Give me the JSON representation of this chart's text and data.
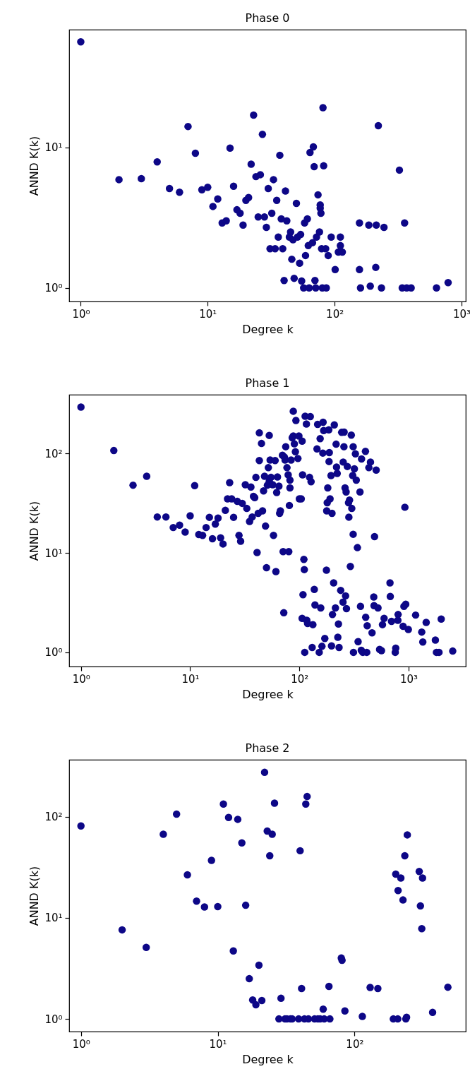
{
  "chart_data": [
    {
      "type": "scatter",
      "title": "Phase 0",
      "xlabel": "Degree k",
      "ylabel": "ANND K(k)",
      "log": "xy",
      "marker": "circle",
      "xlim": [
        0.81,
        1080
      ],
      "ylim": [
        0.8,
        69
      ],
      "xticks": [
        {
          "value": 1,
          "label": "10⁰"
        },
        {
          "value": 10,
          "label": "10¹"
        },
        {
          "value": 100,
          "label": "10²"
        },
        {
          "value": 1000,
          "label": "10³"
        }
      ],
      "yticks": [
        {
          "value": 1,
          "label": "10⁰"
        },
        {
          "value": 10,
          "label": "10¹"
        }
      ],
      "series": [
        {
          "color": "#0d0787",
          "x": [
            1,
            2,
            3,
            4,
            5,
            6,
            7,
            8,
            9,
            10,
            11,
            12,
            13,
            14,
            15,
            16,
            17,
            18,
            19,
            20,
            21,
            22,
            23,
            24,
            25,
            26,
            27,
            28,
            29,
            30,
            31,
            32,
            33,
            34,
            35,
            36,
            37,
            38,
            39,
            40,
            41,
            42,
            44,
            45,
            46,
            47,
            48,
            50,
            51,
            53,
            54,
            55,
            57,
            58,
            59,
            61,
            62,
            63,
            64,
            67,
            68,
            69,
            70,
            71,
            72,
            74,
            76,
            77,
            77,
            78,
            79,
            80,
            81,
            82,
            85,
            86,
            89,
            94,
            101,
            107,
            111,
            111,
            115,
            157,
            157,
            160,
            186,
            191,
            211,
            213,
            221,
            234,
            245,
            324,
            341,
            356,
            370,
            401,
            635,
            784
          ],
          "values": [
            56.5,
            5.9,
            6.0,
            7.9,
            5.1,
            4.8,
            14.1,
            9.1,
            5.0,
            5.2,
            3.8,
            4.3,
            2.9,
            3.0,
            9.9,
            5.3,
            3.6,
            3.4,
            2.8,
            4.2,
            4.4,
            7.6,
            17.0,
            6.2,
            3.2,
            6.4,
            12.4,
            3.2,
            2.7,
            5.1,
            1.9,
            3.4,
            5.9,
            1.9,
            4.2,
            2.3,
            8.8,
            3.1,
            1.9,
            1.13,
            4.9,
            3.0,
            2.3,
            2.5,
            1.6,
            2.2,
            1.17,
            4.0,
            2.3,
            1.5,
            2.4,
            1.12,
            1.0,
            2.9,
            1.7,
            3.1,
            2.0,
            1.0,
            9.2,
            2.1,
            10.1,
            7.3,
            1.13,
            1.0,
            2.3,
            4.6,
            2.5,
            3.7,
            3.9,
            3.4,
            1.9,
            1.0,
            19.2,
            7.4,
            1.9,
            1.0,
            1.7,
            2.3,
            1.35,
            1.8,
            2.3,
            2.0,
            1.8,
            1.35,
            2.9,
            1.0,
            2.8,
            1.03,
            1.4,
            2.8,
            14.3,
            1.0,
            2.7,
            6.9,
            1.0,
            2.9,
            1.0,
            1.0,
            1.0,
            1.09
          ]
        }
      ]
    },
    {
      "type": "scatter",
      "title": "Phase 1",
      "xlabel": "Degree k",
      "ylabel": "ANND K(k)",
      "log": "xy",
      "marker": "circle",
      "xlim": [
        0.78,
        3340
      ],
      "ylim": [
        0.72,
        390
      ],
      "xticks": [
        {
          "value": 1,
          "label": "10⁰"
        },
        {
          "value": 10,
          "label": "10¹"
        },
        {
          "value": 100,
          "label": "10²"
        },
        {
          "value": 1000,
          "label": "10³"
        }
      ],
      "yticks": [
        {
          "value": 1,
          "label": "10⁰"
        },
        {
          "value": 10,
          "label": "10¹"
        },
        {
          "value": 100,
          "label": "10²"
        }
      ],
      "series": [
        {
          "color": "#0d0787",
          "x": [
            1,
            2,
            3,
            4,
            5,
            6,
            7,
            8,
            9,
            10,
            11,
            12,
            13,
            14,
            15,
            16,
            17,
            18,
            19,
            20,
            21,
            23,
            22,
            24,
            25,
            27,
            28,
            29,
            30,
            32,
            33,
            35,
            36,
            37,
            38,
            39,
            40,
            41,
            42,
            43,
            43,
            45,
            46,
            47,
            48,
            49,
            50,
            51,
            52,
            53,
            53,
            54,
            55,
            57,
            58,
            60,
            61,
            62,
            63,
            65,
            66,
            67,
            70,
            71,
            73,
            74,
            75,
            77,
            79,
            80,
            72,
            81,
            82,
            82,
            84,
            86,
            88,
            90,
            92,
            93,
            88,
            97,
            99,
            100,
            104,
            106,
            107,
            110,
            111,
            108,
            106,
            112,
            113,
            116,
            117,
            119,
            124,
            126,
            128,
            131,
            133,
            137,
            139,
            145,
            147,
            152,
            155,
            157,
            161,
            164,
            165,
            167,
            171,
            177,
            178,
            180,
            182,
            186,
            187,
            188,
            191,
            195,
            197,
            199,
            201,
            206,
            209,
            214,
            217,
            219,
            222,
            225,
            228,
            231,
            239,
            244,
            251,
            252,
            256,
            257,
            262,
            265,
            268,
            270,
            275,
            282,
            284,
            288,
            293,
            299,
            302,
            308,
            311,
            311,
            313,
            319,
            326,
            332,
            340,
            345,
            359,
            363,
            369,
            371,
            381,
            403,
            405,
            414,
            418,
            433,
            448,
            463,
            480,
            488,
            483,
            505,
            525,
            543,
            565,
            577,
            597,
            676,
            680,
            698,
            755,
            763,
            798,
            802,
            891,
            907,
            925,
            942,
            995,
            1160,
            1320,
            1350,
            1450,
            1760,
            1800,
            1900,
            1990,
            2537
          ],
          "values": [
            293,
            107,
            48,
            59,
            23,
            23,
            18,
            19,
            16.2,
            23.6,
            47.5,
            15.3,
            15.0,
            18,
            22.8,
            13.9,
            19.5,
            22.4,
            14.2,
            12.3,
            26.8,
            51,
            35,
            35,
            22.8,
            33,
            15,
            13.1,
            31.5,
            48.5,
            28,
            20.7,
            46,
            23,
            37,
            36,
            57.5,
            10.1,
            25,
            161,
            85,
            126,
            26.5,
            42,
            59,
            18.6,
            7.1,
            48,
            72,
            152,
            52.5,
            86,
            57.5,
            48.5,
            15,
            85,
            6.5,
            40.5,
            58,
            47,
            25,
            26.5,
            96,
            10.3,
            92,
            86,
            117,
            72,
            61,
            10.3,
            2.5,
            30,
            45,
            54,
            86,
            144,
            150,
            125,
            104,
            215,
            266,
            89,
            150,
            35,
            35,
            133,
            61,
            8.6,
            6.8,
            3.8,
            2.2,
            1.0,
            237,
            198,
            2.1,
            1.95,
            57.5,
            235,
            52,
            1.12,
            1.9,
            4.3,
            3.0,
            111,
            196,
            1.0,
            141,
            2.8,
            1.15,
            101,
            206,
            170,
            1.38,
            6.7,
            26.5,
            32,
            45,
            173,
            83,
            102,
            35,
            60,
            1.16,
            25,
            2.4,
            5.0,
            194,
            2.8,
            124,
            73,
            63,
            1.42,
            1.93,
            1.12,
            4.2,
            163,
            3.2,
            82,
            117,
            164,
            45,
            3.7,
            41,
            2.75,
            74,
            32,
            22.9,
            34,
            7.3,
            153,
            28,
            60,
            15.4,
            117,
            1.0,
            70,
            99,
            54,
            11.3,
            1.28,
            41,
            2.9,
            1.05,
            88,
            1.0,
            105,
            2.25,
            1.0,
            1.85,
            72,
            82,
            1.57,
            3.6,
            14.6,
            2.95,
            68,
            2.8,
            1.07,
            1.04,
            1.9,
            2.2,
            5.0,
            3.65,
            2.05,
            1.0,
            1.1,
            2.1,
            2.4,
            1.83,
            2.9,
            28.8,
            3.05,
            1.7,
            2.37,
            1.6,
            1.27,
            2.0,
            1.33,
            1.0,
            1.0,
            2.16,
            1.03
          ]
        }
      ]
    },
    {
      "type": "scatter",
      "title": "Phase 2",
      "xlabel": "Degree k",
      "ylabel": "ANND K(k)",
      "log": "xy",
      "marker": "circle",
      "xlim": [
        0.82,
        650
      ],
      "ylim": [
        0.75,
        365
      ],
      "xticks": [
        {
          "value": 1,
          "label": "10⁰"
        },
        {
          "value": 10,
          "label": "10¹"
        },
        {
          "value": 100,
          "label": "10²"
        }
      ],
      "yticks": [
        {
          "value": 1,
          "label": "10⁰"
        },
        {
          "value": 10,
          "label": "10¹"
        },
        {
          "value": 100,
          "label": "10²"
        }
      ],
      "series": [
        {
          "color": "#0d0787",
          "x": [
            1,
            2,
            3,
            4,
            5,
            6,
            7,
            8,
            9,
            10,
            11,
            12,
            13,
            14,
            15,
            16,
            17,
            18,
            19,
            20,
            21,
            22,
            23,
            24,
            25,
            26,
            28,
            29,
            31,
            32,
            34,
            35,
            39,
            40,
            41,
            43,
            44,
            45,
            46,
            51,
            54,
            56,
            59,
            60,
            65,
            66,
            80,
            81,
            85,
            114,
            130,
            148,
            192,
            200,
            207,
            208,
            218,
            226,
            233,
            237,
            240,
            243,
            297,
            303,
            310,
            314,
            372,
            481
          ],
          "values": [
            81,
            7.6,
            5.1,
            67,
            106,
            26.6,
            14.6,
            12.8,
            37,
            12.9,
            133,
            98,
            4.7,
            94,
            55,
            13.3,
            2.5,
            1.54,
            1.38,
            3.4,
            1.52,
            274,
            72,
            41,
            67,
            136,
            1.0,
            1.6,
            1.0,
            1.0,
            1.0,
            1.0,
            1.0,
            46,
            2.0,
            1.0,
            133,
            158,
            1.0,
            1.0,
            1.0,
            1.0,
            1.25,
            1.0,
            2.1,
            1.0,
            4.0,
            3.8,
            1.2,
            1.06,
            2.05,
            2.0,
            1.0,
            27,
            1.0,
            18.6,
            24.7,
            15.0,
            41,
            1.0,
            1.04,
            66,
            28.7,
            13.1,
            7.8,
            24.7,
            1.16,
            2.06
          ]
        }
      ]
    }
  ]
}
